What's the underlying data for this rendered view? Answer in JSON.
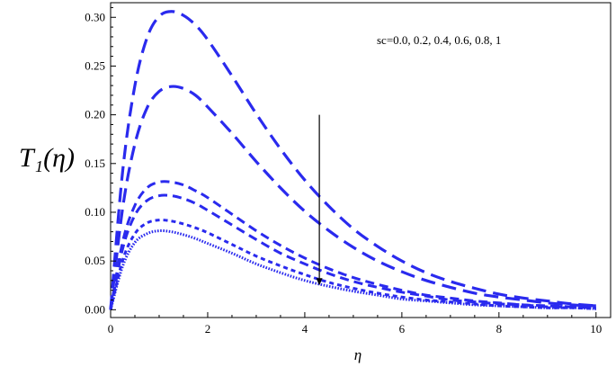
{
  "chart_data": {
    "type": "line",
    "title": "",
    "xlabel": "η",
    "ylabel": "T₁(η)",
    "xlim": [
      0,
      10.3
    ],
    "ylim": [
      -0.008,
      0.315
    ],
    "x_ticks": [
      0,
      2,
      4,
      6,
      8,
      10
    ],
    "x_tick_labels": [
      "0",
      "2",
      "4",
      "6",
      "8",
      "10"
    ],
    "y_ticks": [
      0.0,
      0.05,
      0.1,
      0.15,
      0.2,
      0.25,
      0.3
    ],
    "y_tick_labels": [
      "0.00",
      "0.05",
      "0.10",
      "0.15",
      "0.20",
      "0.25",
      "0.30"
    ],
    "grid": false,
    "legend": "none",
    "line_color": "#2a2aee",
    "annotation": {
      "text": "sc=0.0, 0.2, 0.4, 0.6, 0.8, 1",
      "arrow": {
        "x": 4.3,
        "y_from": 0.2,
        "y_to": 0.025
      }
    },
    "x": [
      0,
      0.25,
      0.5,
      0.75,
      1,
      1.25,
      1.5,
      1.75,
      2,
      2.5,
      3,
      3.5,
      4,
      4.5,
      5,
      5.5,
      6,
      6.5,
      7,
      7.5,
      8,
      8.5,
      9,
      9.5,
      10
    ],
    "series": [
      {
        "dash": "long",
        "values": [
          0,
          0.143,
          0.23,
          0.279,
          0.301,
          0.306,
          0.302,
          0.292,
          0.277,
          0.24,
          0.201,
          0.165,
          0.133,
          0.106,
          0.083,
          0.065,
          0.05,
          0.038,
          0.029,
          0.022,
          0.016,
          0.012,
          0.009,
          0.006,
          0.004
        ]
      },
      {
        "dash": "long",
        "values": [
          0,
          0.105,
          0.17,
          0.207,
          0.224,
          0.229,
          0.227,
          0.22,
          0.208,
          0.181,
          0.152,
          0.125,
          0.101,
          0.081,
          0.064,
          0.05,
          0.039,
          0.03,
          0.023,
          0.017,
          0.013,
          0.01,
          0.007,
          0.005,
          0.004
        ]
      },
      {
        "dash": "medium",
        "values": [
          0,
          0.07,
          0.107,
          0.125,
          0.131,
          0.131,
          0.128,
          0.122,
          0.115,
          0.098,
          0.081,
          0.066,
          0.053,
          0.042,
          0.033,
          0.026,
          0.02,
          0.015,
          0.012,
          0.009,
          0.007,
          0.005,
          0.004,
          0.003,
          0.002
        ]
      },
      {
        "dash": "medium",
        "values": [
          0,
          0.063,
          0.097,
          0.112,
          0.117,
          0.117,
          0.114,
          0.109,
          0.102,
          0.087,
          0.072,
          0.058,
          0.047,
          0.037,
          0.029,
          0.023,
          0.018,
          0.014,
          0.01,
          0.008,
          0.006,
          0.005,
          0.003,
          0.003,
          0.002
        ]
      },
      {
        "dash": "short",
        "values": [
          0,
          0.051,
          0.078,
          0.089,
          0.092,
          0.091,
          0.088,
          0.084,
          0.079,
          0.067,
          0.055,
          0.045,
          0.036,
          0.028,
          0.022,
          0.017,
          0.013,
          0.01,
          0.008,
          0.006,
          0.004,
          0.003,
          0.002,
          0.002,
          0.001
        ]
      },
      {
        "dash": "dotted",
        "values": [
          0,
          0.045,
          0.069,
          0.078,
          0.081,
          0.08,
          0.077,
          0.073,
          0.068,
          0.058,
          0.047,
          0.038,
          0.03,
          0.024,
          0.019,
          0.015,
          0.011,
          0.009,
          0.007,
          0.005,
          0.004,
          0.003,
          0.002,
          0.002,
          0.001
        ]
      }
    ]
  }
}
